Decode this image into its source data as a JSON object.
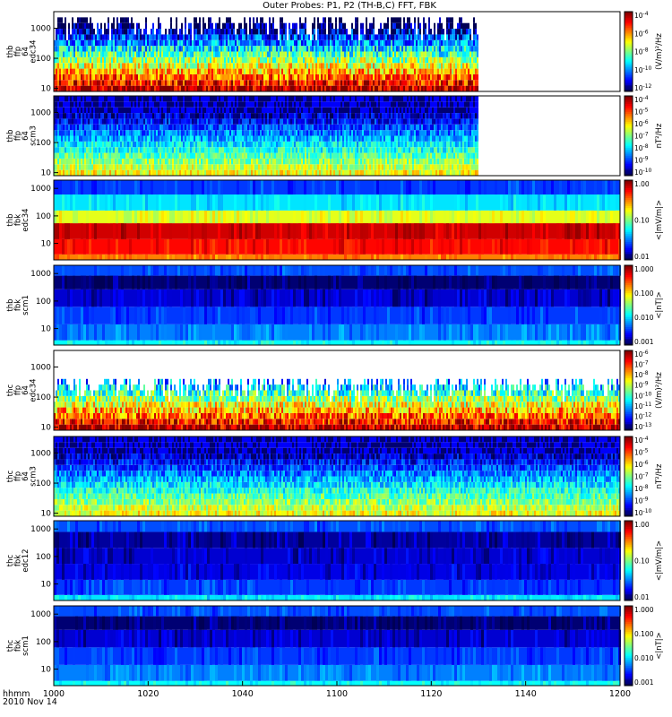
{
  "chart_data": {
    "type": "heatmap",
    "title": "Outer Probes: P1, P2 (TH-B,C) FFT, FBK",
    "x_axis": {
      "label_lines": [
        "hhmm",
        "2010 Nov 14"
      ],
      "ticks": [
        "1000",
        "1020",
        "1040",
        "1100",
        "1120",
        "1140",
        "1200"
      ],
      "tick_values_min": [
        0,
        20,
        40,
        60,
        80,
        100,
        120
      ],
      "range_min": [
        0,
        120
      ]
    },
    "panels": [
      {
        "label_lines": [
          "thb",
          "ffp",
          "64",
          "edc34"
        ],
        "yticks": [
          "10",
          "100",
          "1000"
        ],
        "ylog_range": [
          0.9,
          3.55
        ],
        "cb_ticks": [
          [
            "10",
            "-4"
          ],
          [
            "10",
            "-6"
          ],
          [
            "10",
            "-8"
          ],
          [
            "10",
            "-10"
          ],
          [
            "10",
            "-12"
          ]
        ],
        "cb_label": "(V/m)²/Hz",
        "data_end_min": 90,
        "style": "fft_e"
      },
      {
        "label_lines": [
          "thb",
          "ffp",
          "64",
          "scm3"
        ],
        "yticks": [
          "10",
          "100",
          "1000"
        ],
        "ylog_range": [
          0.9,
          3.55
        ],
        "cb_ticks": [
          [
            "10",
            "-4"
          ],
          [
            "10",
            "-5"
          ],
          [
            "10",
            "-6"
          ],
          [
            "10",
            "-7"
          ],
          [
            "10",
            "-8"
          ],
          [
            "10",
            "-9"
          ],
          [
            "10",
            "-10"
          ]
        ],
        "cb_label": "nT²/Hz",
        "data_end_min": 90,
        "style": "fft_b"
      },
      {
        "label_lines": [
          "thb",
          "fbk",
          "edc34"
        ],
        "yticks": [
          "10",
          "100",
          "1000"
        ],
        "ylog_range": [
          0.4,
          3.3
        ],
        "cb_ticks": [
          [
            "1.00",
            ""
          ],
          [
            "0.10",
            ""
          ],
          [
            "0.01",
            ""
          ]
        ],
        "cb_label": "<|mV/m|>",
        "data_end_min": 120,
        "style": "fbk_e"
      },
      {
        "label_lines": [
          "thb",
          "fbk",
          "scm1"
        ],
        "yticks": [
          "10",
          "100",
          "1000"
        ],
        "ylog_range": [
          0.4,
          3.3
        ],
        "cb_ticks": [
          [
            "1.000",
            ""
          ],
          [
            "0.100",
            ""
          ],
          [
            "0.010",
            ""
          ],
          [
            "0.001",
            ""
          ]
        ],
        "cb_label": "<|nT|>",
        "data_end_min": 120,
        "style": "fbk_b"
      },
      {
        "label_lines": [
          "thc",
          "ffp",
          "64",
          "edc34"
        ],
        "yticks": [
          "10",
          "100",
          "1000"
        ],
        "ylog_range": [
          0.9,
          3.55
        ],
        "cb_ticks": [
          [
            "10",
            "-6"
          ],
          [
            "10",
            "-7"
          ],
          [
            "10",
            "-8"
          ],
          [
            "10",
            "-9"
          ],
          [
            "10",
            "-10"
          ],
          [
            "10",
            "-11"
          ],
          [
            "10",
            "-12"
          ],
          [
            "10",
            "-13"
          ]
        ],
        "cb_label": "(V/m)²/Hz",
        "data_end_min": 120,
        "style": "fft_e"
      },
      {
        "label_lines": [
          "thc",
          "ffp",
          "64",
          "scm3"
        ],
        "yticks": [
          "10",
          "100",
          "1000"
        ],
        "ylog_range": [
          0.9,
          3.55
        ],
        "cb_ticks": [
          [
            "10",
            "-4"
          ],
          [
            "10",
            "-5"
          ],
          [
            "10",
            "-6"
          ],
          [
            "10",
            "-7"
          ],
          [
            "10",
            "-8"
          ],
          [
            "10",
            "-9"
          ],
          [
            "10",
            "-10"
          ]
        ],
        "cb_label": "nT²/Hz",
        "data_end_min": 120,
        "style": "fft_b"
      },
      {
        "label_lines": [
          "thc",
          "fbk",
          "edc12"
        ],
        "yticks": [
          "10",
          "100",
          "1000"
        ],
        "ylog_range": [
          0.4,
          3.3
        ],
        "cb_ticks": [
          [
            "1.00",
            ""
          ],
          [
            "0.10",
            ""
          ],
          [
            "0.01",
            ""
          ]
        ],
        "cb_label": "<|mV/m|>",
        "data_end_min": 120,
        "style": "fbk_e2"
      },
      {
        "label_lines": [
          "thc",
          "fbk",
          "scm1"
        ],
        "yticks": [
          "10",
          "100",
          "1000"
        ],
        "ylog_range": [
          0.4,
          3.3
        ],
        "cb_ticks": [
          [
            "1.000",
            ""
          ],
          [
            "0.100",
            ""
          ],
          [
            "0.010",
            ""
          ],
          [
            "0.001",
            ""
          ]
        ],
        "cb_label": "<|nT|>",
        "data_end_min": 120,
        "style": "fbk_b"
      }
    ]
  }
}
